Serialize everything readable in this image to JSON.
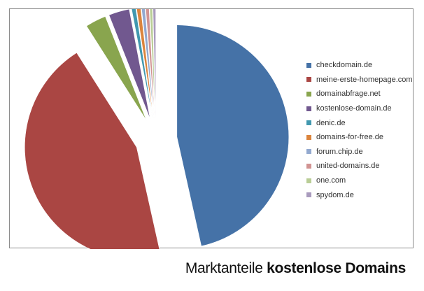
{
  "chart_data": {
    "type": "pie",
    "exploded": true,
    "legend_position": "right",
    "slices": [
      {
        "name": "checkdomain.de",
        "value": 46.5,
        "color": "#4572A7"
      },
      {
        "name": "meine-erste-homepage.com",
        "value": 44.5,
        "color": "#AA4643"
      },
      {
        "name": "domainabfrage.net",
        "value": 3.0,
        "color": "#89A54E"
      },
      {
        "name": "kostenlose-domain.de",
        "value": 3.0,
        "color": "#71588F"
      },
      {
        "name": "denic.de",
        "value": 0.6,
        "color": "#4198AF"
      },
      {
        "name": "domains-for-free.de",
        "value": 0.6,
        "color": "#DB843D"
      },
      {
        "name": "forum.chip.de",
        "value": 0.5,
        "color": "#93A9CF"
      },
      {
        "name": "united-domains.de",
        "value": 0.5,
        "color": "#D19392"
      },
      {
        "name": "one.com",
        "value": 0.4,
        "color": "#B9CD96"
      },
      {
        "name": "spydom.de",
        "value": 0.4,
        "color": "#A99BBD"
      }
    ]
  },
  "caption": {
    "light": "Marktanteile ",
    "bold": "kostenlose Domains"
  }
}
